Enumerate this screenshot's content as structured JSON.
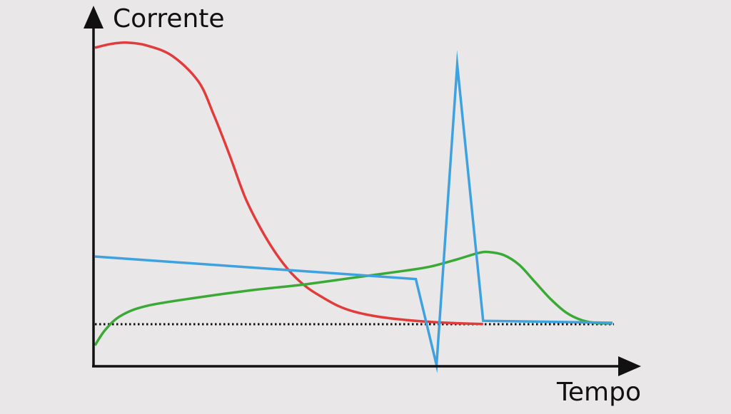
{
  "chart_data": {
    "type": "line",
    "title": "",
    "xlabel": "Tempo",
    "ylabel": "Corrente",
    "xlim": [
      0,
      100
    ],
    "ylim": [
      -8,
      100
    ],
    "grid": false,
    "legend": "none",
    "colors": {
      "background": "#e9e7e8",
      "axis": "#111111",
      "red": "#e23b3b",
      "blue": "#3fa2e0",
      "green": "#3aa935",
      "baseline": "#111111"
    },
    "series": [
      {
        "color": "red",
        "x": [
          0,
          3,
          6,
          10,
          15,
          20,
          23,
          26,
          29,
          32,
          35,
          38,
          41,
          44,
          47,
          50,
          54,
          58,
          62,
          66,
          70,
          75
        ],
        "y": [
          98,
          99.3,
          99.8,
          98.8,
          95,
          86,
          74,
          60,
          45,
          34,
          25,
          18,
          13,
          9.5,
          6.5,
          4.5,
          2.9,
          1.9,
          1.2,
          0.7,
          0.35,
          0.05
        ]
      },
      {
        "color": "blue",
        "x": [
          0,
          62,
          66,
          70,
          75,
          100
        ],
        "y": [
          24,
          16,
          -14.5,
          92,
          1.2,
          0.5
        ]
      },
      {
        "color": "green",
        "x": [
          0,
          2,
          5,
          10,
          20,
          30,
          40,
          50,
          60,
          65,
          70,
          74,
          76,
          79,
          82,
          85,
          88,
          91,
          94,
          97,
          100
        ],
        "y": [
          -7.5,
          -2,
          3,
          6.5,
          9.5,
          12,
          14,
          16.5,
          19,
          20.5,
          23,
          25.2,
          25.6,
          24.5,
          21,
          15,
          9,
          4.2,
          1.5,
          0.4,
          0.3
        ]
      }
    ],
    "baseline": {
      "y": 0,
      "style": "dotted",
      "color": "baseline"
    }
  }
}
